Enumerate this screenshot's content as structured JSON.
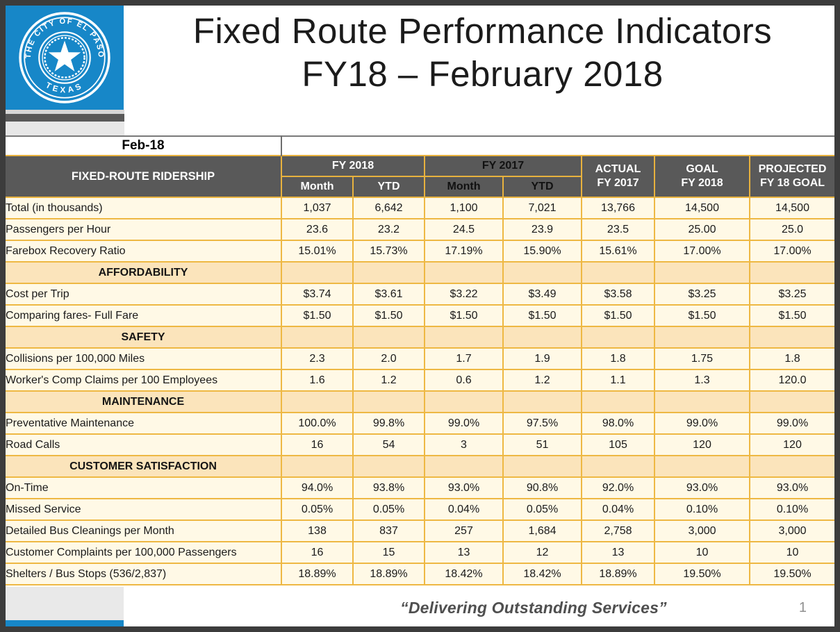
{
  "slide": {
    "title_line1": "Fixed Route Performance Indicators",
    "title_line2": "FY18 – February 2018",
    "footer_quote": "“Delivering Outstanding Services”",
    "page_number": "1",
    "logo": {
      "seal_top_text": "THE CITY OF EL PASO",
      "seal_bottom_text": "TEXAS"
    }
  },
  "colors": {
    "logo_blue": "#1787c8",
    "header_gray": "#595959",
    "border_gold": "#eeb843",
    "row_cream": "#fff9e6",
    "section_cream": "#fbe4bb",
    "frame_dark": "#3c3c3c"
  },
  "table": {
    "date_label": "Feb-18",
    "corner_header": "FIXED-ROUTE RIDERSHIP",
    "fy2018_header": "FY 2018",
    "fy2017_header": "FY 2017",
    "fy2018_sub": [
      "Month",
      "YTD"
    ],
    "fy2017_sub": [
      "Month",
      "YTD"
    ],
    "actual_header": [
      "ACTUAL",
      "FY 2017"
    ],
    "goal_header": [
      "GOAL",
      "FY 2018"
    ],
    "projected_header": [
      "PROJECTED",
      "FY 18 GOAL"
    ],
    "rows": [
      {
        "type": "data",
        "label": "Total (in thousands)",
        "values": [
          "1,037",
          "6,642",
          "1,100",
          "7,021",
          "13,766",
          "14,500",
          "14,500"
        ]
      },
      {
        "type": "data",
        "label": "Passengers per Hour",
        "values": [
          "23.6",
          "23.2",
          "24.5",
          "23.9",
          "23.5",
          "25.00",
          "25.0"
        ]
      },
      {
        "type": "data",
        "label": "Farebox Recovery Ratio",
        "values": [
          "15.01%",
          "15.73%",
          "17.19%",
          "15.90%",
          "15.61%",
          "17.00%",
          "17.00%"
        ]
      },
      {
        "type": "section",
        "label": "AFFORDABILITY",
        "values": [
          "",
          "",
          "",
          "",
          "",
          "",
          ""
        ]
      },
      {
        "type": "data",
        "label": "Cost per Trip",
        "values": [
          "$3.74",
          "$3.61",
          "$3.22",
          "$3.49",
          "$3.58",
          "$3.25",
          "$3.25"
        ]
      },
      {
        "type": "data",
        "label": "Comparing fares- Full Fare",
        "values": [
          "$1.50",
          "$1.50",
          "$1.50",
          "$1.50",
          "$1.50",
          "$1.50",
          "$1.50"
        ]
      },
      {
        "type": "section",
        "label": "SAFETY",
        "values": [
          "",
          "",
          "",
          "",
          "",
          "",
          ""
        ]
      },
      {
        "type": "data",
        "label": "Collisions per 100,000 Miles",
        "values": [
          "2.3",
          "2.0",
          "1.7",
          "1.9",
          "1.8",
          "1.75",
          "1.8"
        ]
      },
      {
        "type": "data",
        "label": "Worker's Comp Claims per 100 Employees",
        "values": [
          "1.6",
          "1.2",
          "0.6",
          "1.2",
          "1.1",
          "1.3",
          "120.0"
        ]
      },
      {
        "type": "section",
        "label": "MAINTENANCE",
        "values": [
          "",
          "",
          "",
          "",
          "",
          "",
          ""
        ]
      },
      {
        "type": "data",
        "label": "Preventative Maintenance",
        "values": [
          "100.0%",
          "99.8%",
          "99.0%",
          "97.5%",
          "98.0%",
          "99.0%",
          "99.0%"
        ]
      },
      {
        "type": "data",
        "label": "Road Calls",
        "values": [
          "16",
          "54",
          "3",
          "51",
          "105",
          "120",
          "120"
        ]
      },
      {
        "type": "section",
        "label": "CUSTOMER SATISFACTION",
        "values": [
          "",
          "",
          "",
          "",
          "",
          "",
          ""
        ]
      },
      {
        "type": "data",
        "label": "On-Time",
        "values": [
          "94.0%",
          "93.8%",
          "93.0%",
          "90.8%",
          "92.0%",
          "93.0%",
          "93.0%"
        ]
      },
      {
        "type": "data",
        "label": "Missed Service",
        "values": [
          "0.05%",
          "0.05%",
          "0.04%",
          "0.05%",
          "0.04%",
          "0.10%",
          "0.10%"
        ]
      },
      {
        "type": "data",
        "label": "Detailed Bus Cleanings per Month",
        "values": [
          "138",
          "837",
          "257",
          "1,684",
          "2,758",
          "3,000",
          "3,000"
        ]
      },
      {
        "type": "data",
        "label": "Customer Complaints per 100,000 Passengers",
        "values": [
          "16",
          "15",
          "13",
          "12",
          "13",
          "10",
          "10"
        ]
      },
      {
        "type": "data",
        "label": "Shelters / Bus Stops (536/2,837)",
        "values": [
          "18.89%",
          "18.89%",
          "18.42%",
          "18.42%",
          "18.89%",
          "19.50%",
          "19.50%"
        ]
      }
    ]
  }
}
